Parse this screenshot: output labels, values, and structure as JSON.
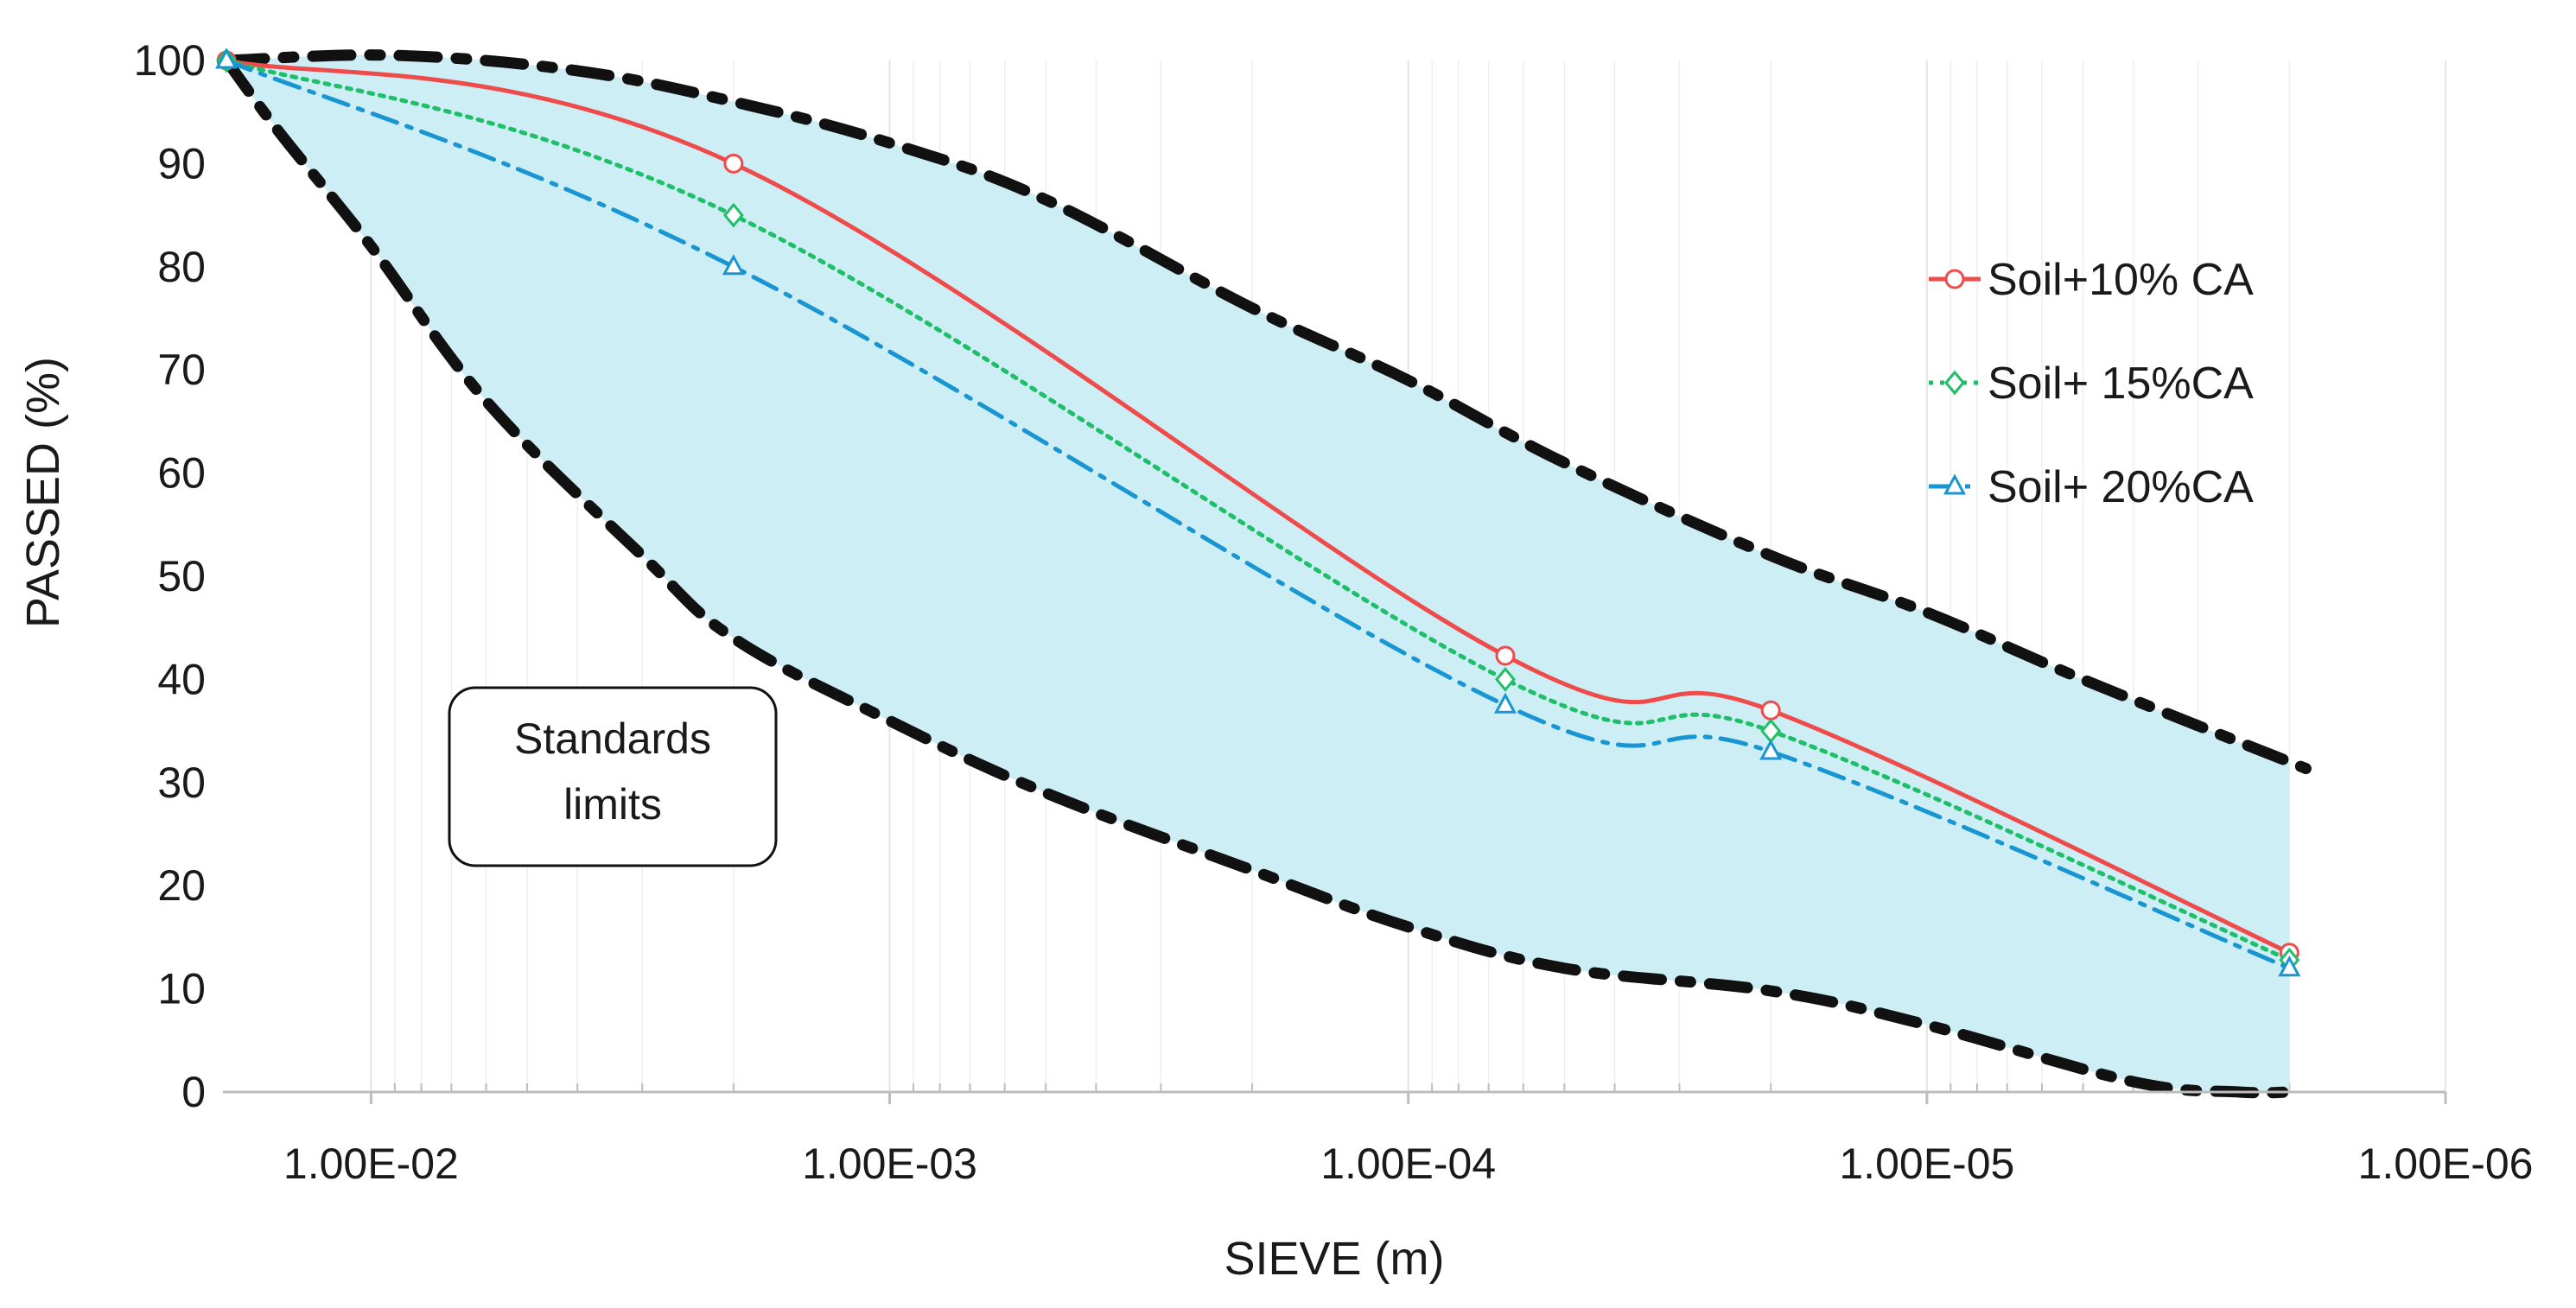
{
  "chart_data": {
    "type": "line",
    "title": "",
    "xlabel": "SIEVE (m)",
    "ylabel": "PASSED (%)",
    "x_scale": "log",
    "x_reversed": true,
    "xlim": [
      0.0193,
      1e-06
    ],
    "ylim": [
      0,
      100
    ],
    "x_ticks": [
      0.01,
      0.001,
      0.0001,
      1e-05,
      1e-06
    ],
    "x_tick_labels": [
      "1.00E-02",
      "1.00E-03",
      "1.00E-04",
      "1.00E-05",
      "1.00E-06"
    ],
    "y_ticks": [
      0,
      10,
      20,
      30,
      40,
      50,
      60,
      70,
      80,
      90,
      100
    ],
    "y_tick_labels": [
      "0",
      "10",
      "20",
      "30",
      "40",
      "50",
      "60",
      "70",
      "80",
      "90",
      "100"
    ],
    "grid": "vertical minor log lines",
    "legend_position": "right",
    "series": [
      {
        "name": "Soil+10% CA",
        "color": "#f04b4b",
        "dash": "solid",
        "marker": "circle",
        "x": [
          0.019,
          0.002,
          6.5e-05,
          2e-05,
          2e-06
        ],
        "y": [
          100,
          90,
          42.3,
          37,
          13.5
        ]
      },
      {
        "name": "Soil+ 15%CA",
        "color": "#1fbf6a",
        "dash": "dotted",
        "marker": "diamond",
        "x": [
          0.019,
          0.002,
          6.5e-05,
          2e-05,
          2e-06
        ],
        "y": [
          100,
          85,
          40,
          35,
          12.8
        ]
      },
      {
        "name": "Soil+ 20%CA",
        "color": "#1996d2",
        "dash": "dashdot",
        "marker": "triangle",
        "x": [
          0.019,
          0.002,
          6.5e-05,
          2e-05,
          2e-06
        ],
        "y": [
          100,
          80,
          37.5,
          33,
          12
        ]
      }
    ],
    "limits": {
      "label": "Standards limits",
      "fill_color": "#cdeef4",
      "upper": {
        "x": [
          0.019,
          0.009,
          0.004,
          0.002,
          0.001,
          0.0005,
          0.0002,
          0.0001,
          5e-05,
          2e-05,
          1e-05,
          5e-06,
          2e-06,
          2e-06
        ],
        "y": [
          100,
          100.5,
          99,
          96,
          92,
          86.5,
          76,
          69,
          61,
          52,
          46.5,
          40,
          32,
          32
        ]
      },
      "lower": {
        "x": [
          0.019,
          0.015,
          0.01,
          0.006,
          0.003,
          0.002,
          0.001,
          0.0005,
          0.0002,
          0.0001,
          5e-05,
          2e-05,
          1e-05,
          4e-06,
          2.5e-06,
          2e-06
        ],
        "y": [
          100,
          93,
          82,
          67,
          52,
          44,
          36,
          29,
          21.5,
          16,
          12,
          9.8,
          6.5,
          1,
          0,
          0
        ]
      }
    }
  }
}
